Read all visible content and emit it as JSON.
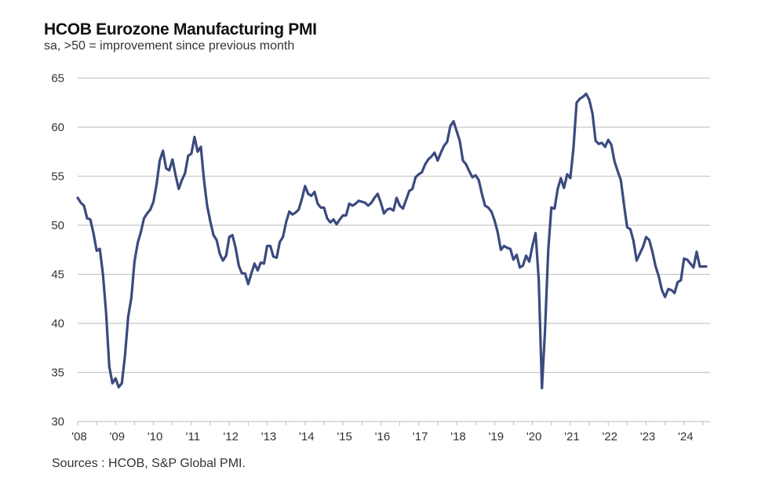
{
  "chart_data": {
    "type": "line",
    "title": "HCOB Eurozone Manufacturing PMI",
    "subtitle": "sa, >50 = improvement  since previous month",
    "source": "Sources : HCOB, S&P Global  PMI.",
    "xlabel": "",
    "ylabel": "",
    "x_start": "2008-01",
    "x_end": "2024-08",
    "frequency": "monthly",
    "ylim": [
      30,
      65
    ],
    "y_ticks": [
      65,
      60,
      55,
      50,
      45,
      40,
      35,
      30
    ],
    "x_tick_labels": [
      "'08",
      "'09",
      "'10",
      "'11",
      "'12",
      "'13",
      "'14",
      "'15",
      "'16",
      "'17",
      "'18",
      "'19",
      "'20",
      "'21",
      "'22",
      "'23",
      "'24"
    ],
    "grid": "horizontal",
    "line_color": "#3b4a7e",
    "series": [
      {
        "values": [
          52.8,
          52.3,
          52.0,
          50.7,
          50.6,
          49.2,
          47.4,
          47.6,
          45.0,
          41.1,
          35.6,
          33.9,
          34.4,
          33.5,
          33.9,
          36.8,
          40.7,
          42.6,
          46.3,
          48.2,
          49.3,
          50.7,
          51.2,
          51.6,
          52.4,
          54.2,
          56.6,
          57.6,
          55.8,
          55.6,
          56.7,
          55.1,
          53.7,
          54.6,
          55.3,
          57.1,
          57.3,
          59.0,
          57.5,
          58.0,
          54.6,
          52.0,
          50.4,
          49.0,
          48.5,
          47.1,
          46.4,
          46.9,
          48.8,
          49.0,
          47.7,
          45.9,
          45.1,
          45.1,
          44.0,
          45.1,
          46.1,
          45.4,
          46.2,
          46.1,
          47.9,
          47.9,
          46.8,
          46.7,
          48.3,
          48.8,
          50.3,
          51.4,
          51.1,
          51.3,
          51.6,
          52.7,
          54.0,
          53.2,
          53.0,
          53.4,
          52.2,
          51.8,
          51.8,
          50.7,
          50.3,
          50.6,
          50.1,
          50.6,
          51.0,
          51.0,
          52.2,
          52.0,
          52.2,
          52.5,
          52.4,
          52.3,
          52.0,
          52.3,
          52.8,
          53.2,
          52.3,
          51.2,
          51.6,
          51.7,
          51.5,
          52.8,
          52.0,
          51.7,
          52.6,
          53.5,
          53.7,
          54.9,
          55.2,
          55.4,
          56.2,
          56.7,
          57.0,
          57.4,
          56.6,
          57.4,
          58.1,
          58.5,
          60.1,
          60.6,
          59.6,
          58.6,
          56.6,
          56.2,
          55.5,
          54.9,
          55.1,
          54.6,
          53.2,
          52.0,
          51.8,
          51.4,
          50.5,
          49.3,
          47.5,
          47.9,
          47.7,
          47.6,
          46.5,
          47.0,
          45.7,
          45.9,
          46.9,
          46.3,
          47.9,
          49.2,
          44.5,
          33.4,
          39.4,
          47.4,
          51.8,
          51.7,
          53.7,
          54.8,
          53.8,
          55.2,
          54.8,
          57.9,
          62.5,
          62.9,
          63.1,
          63.4,
          62.8,
          61.4,
          58.6,
          58.3,
          58.4,
          58.0,
          58.7,
          58.2,
          56.5,
          55.5,
          54.6,
          52.1,
          49.8,
          49.6,
          48.4,
          46.4,
          47.1,
          47.8,
          48.8,
          48.5,
          47.3,
          45.8,
          44.8,
          43.4,
          42.7,
          43.5,
          43.4,
          43.1,
          44.2,
          44.4,
          46.6,
          46.5,
          46.1,
          45.7,
          47.3,
          45.8,
          45.8,
          45.8
        ]
      }
    ]
  }
}
